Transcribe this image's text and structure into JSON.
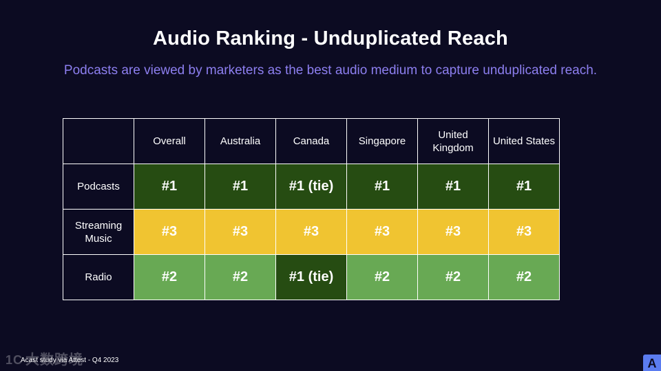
{
  "slide": {
    "title": "Audio Ranking - Unduplicated Reach",
    "subtitle": "Podcasts are viewed by marketers as the best audio medium to capture unduplicated reach.",
    "footnote": "Acast study via Attest - Q4 2023",
    "watermark": "大数跨境",
    "watermark_mark": "1C",
    "logo_letter": "A"
  },
  "colors": {
    "background": "#0c0b22",
    "subtitle": "#8d7ff0",
    "rank_1": "#264c12",
    "rank_2": "#68a954",
    "rank_3": "#f0c431",
    "logo": "#5b7cf0"
  },
  "table": {
    "columns": [
      "Overall",
      "Australia",
      "Canada",
      "Singapore",
      "United Kingdom",
      "United States"
    ],
    "rows": [
      {
        "label": "Podcasts",
        "cells": [
          "#1",
          "#1",
          "#1 (tie)",
          "#1",
          "#1",
          "#1"
        ],
        "tones": [
          "dark",
          "dark",
          "dark",
          "dark",
          "dark",
          "dark"
        ]
      },
      {
        "label": "Streaming Music",
        "cells": [
          "#3",
          "#3",
          "#3",
          "#3",
          "#3",
          "#3"
        ],
        "tones": [
          "yellow",
          "yellow",
          "yellow",
          "yellow",
          "yellow",
          "yellow"
        ]
      },
      {
        "label": "Radio",
        "cells": [
          "#2",
          "#2",
          "#1 (tie)",
          "#2",
          "#2",
          "#2"
        ],
        "tones": [
          "light",
          "light",
          "dark",
          "light",
          "light",
          "light"
        ]
      }
    ]
  }
}
